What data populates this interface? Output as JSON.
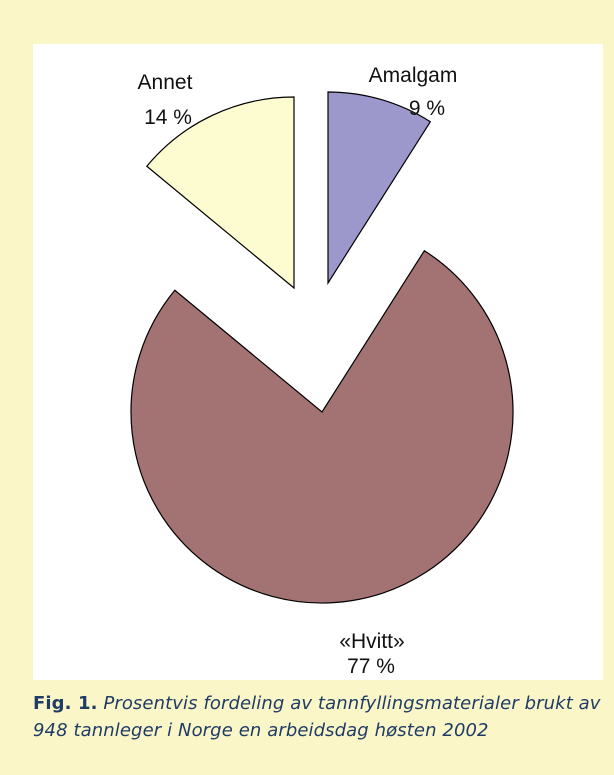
{
  "chart_data": {
    "type": "pie",
    "slices": [
      {
        "name": "Amalgam",
        "value": 9,
        "value_label": "9 %",
        "color": "#9d98cc",
        "exploded": true
      },
      {
        "name": "«Hvitt»",
        "value": 77,
        "value_label": "77 %",
        "color": "#a37373",
        "exploded": false
      },
      {
        "name": "Annet",
        "value": 14,
        "value_label": "14 %",
        "color": "#fdfcd0",
        "exploded": true
      }
    ],
    "start_angle_deg": 0,
    "direction": "clockwise",
    "outline_color": "#000000"
  },
  "caption": {
    "label": "Fig. 1.",
    "text": "Prosentvis fordeling av tannfyllingsmaterialer brukt av 948 tannleger i Norge en arbeidsdag høsten 2002"
  },
  "colors": {
    "page_background": "#fbf6c8",
    "panel_background": "#ffffff",
    "caption_text": "#1f3c66"
  }
}
